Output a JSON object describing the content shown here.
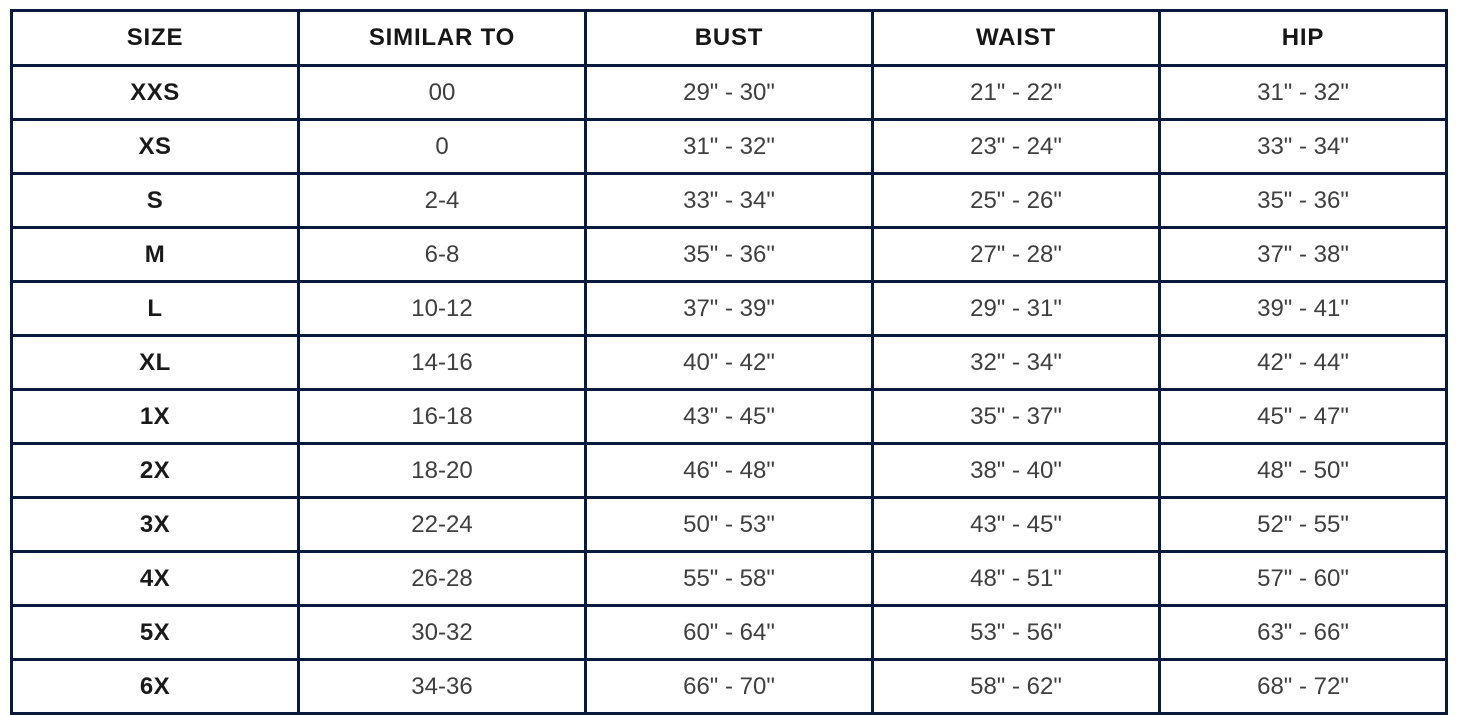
{
  "chart_data": {
    "type": "table",
    "columns": [
      "SIZE",
      "SIMILAR TO",
      "BUST",
      "WAIST",
      "HIP"
    ],
    "rows": [
      [
        "XXS",
        "00",
        "29\" - 30\"",
        "21\" - 22\"",
        "31\" - 32\""
      ],
      [
        "XS",
        "0",
        "31\" - 32\"",
        "23\" - 24\"",
        "33\" - 34\""
      ],
      [
        "S",
        "2-4",
        "33\" - 34\"",
        "25\" - 26\"",
        "35\" - 36\""
      ],
      [
        "M",
        "6-8",
        "35\" - 36\"",
        "27\" - 28\"",
        "37\" - 38\""
      ],
      [
        "L",
        "10-12",
        "37\" - 39\"",
        "29\" - 31\"",
        "39\" - 41\""
      ],
      [
        "XL",
        "14-16",
        "40\" - 42\"",
        "32\" - 34\"",
        "42\" - 44\""
      ],
      [
        "1X",
        "16-18",
        "43\" - 45\"",
        "35\" - 37\"",
        "45\" - 47\""
      ],
      [
        "2X",
        "18-20",
        "46\" - 48\"",
        "38\" - 40\"",
        "48\" - 50\""
      ],
      [
        "3X",
        "22-24",
        "50\" - 53\"",
        "43\" - 45\"",
        "52\" - 55\""
      ],
      [
        "4X",
        "26-28",
        "55\" - 58\"",
        "48\" - 51\"",
        "57\" - 60\""
      ],
      [
        "5X",
        "30-32",
        "60\" - 64\"",
        "53\" - 56\"",
        "63\" - 66\""
      ],
      [
        "6X",
        "34-36",
        "66\" - 70\"",
        "58\" - 62\"",
        "68\" - 72\""
      ]
    ]
  },
  "colors": {
    "border": "#0a1a3c",
    "header_text": "#161616",
    "size_text": "#1a1a1a",
    "body_text": "#3f3f3f",
    "background": "#ffffff"
  }
}
